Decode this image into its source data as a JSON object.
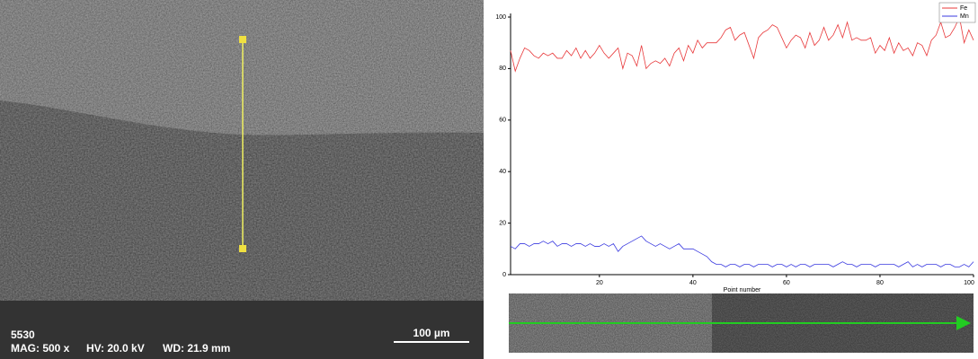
{
  "image_overlay": {
    "sample": "5530",
    "mag": "MAG: 500 x",
    "hv": "HV: 20.0 kV",
    "wd": "WD: 21.9 mm",
    "scale_bar": "100 µm"
  },
  "chart_data": {
    "type": "line",
    "x_label": "Point number",
    "x": [
      1,
      2,
      3,
      4,
      5,
      6,
      7,
      8,
      9,
      10,
      11,
      12,
      13,
      14,
      15,
      16,
      17,
      18,
      19,
      20,
      21,
      22,
      23,
      24,
      25,
      26,
      27,
      28,
      29,
      30,
      31,
      32,
      33,
      34,
      35,
      36,
      37,
      38,
      39,
      40,
      41,
      42,
      43,
      44,
      45,
      46,
      47,
      48,
      49,
      50,
      51,
      52,
      53,
      54,
      55,
      56,
      57,
      58,
      59,
      60,
      61,
      62,
      63,
      64,
      65,
      66,
      67,
      68,
      69,
      70,
      71,
      72,
      73,
      74,
      75,
      76,
      77,
      78,
      79,
      80,
      81,
      82,
      83,
      84,
      85,
      86,
      87,
      88,
      89,
      90,
      91,
      92,
      93,
      94,
      95,
      96,
      97,
      98,
      99,
      100
    ],
    "series": [
      {
        "name": "Fe",
        "color": "#e8383a",
        "values": [
          87,
          79,
          84,
          88,
          87,
          85,
          84,
          86,
          85,
          86,
          84,
          84,
          87,
          85,
          88,
          84,
          87,
          84,
          86,
          89,
          86,
          84,
          86,
          88,
          80,
          86,
          85,
          81,
          89,
          80,
          82,
          83,
          82,
          84,
          81,
          86,
          88,
          83,
          89,
          86,
          91,
          88,
          90,
          90,
          90,
          92,
          95,
          96,
          91,
          93,
          94,
          89,
          84,
          92,
          94,
          95,
          97,
          96,
          92,
          88,
          91,
          93,
          92,
          88,
          94,
          89,
          91,
          96,
          91,
          93,
          97,
          92,
          98,
          91,
          92,
          91,
          91,
          92,
          86,
          89,
          87,
          92,
          86,
          90,
          87,
          88,
          85,
          90,
          89,
          85,
          91,
          93,
          98,
          92,
          93,
          96,
          100,
          90,
          95,
          91
        ]
      },
      {
        "name": "Mn",
        "color": "#3a3ae0",
        "values": [
          11,
          10,
          12,
          12,
          11,
          12,
          12,
          13,
          12,
          13,
          11,
          12,
          12,
          11,
          12,
          12,
          11,
          12,
          11,
          11,
          12,
          11,
          12,
          9,
          11,
          12,
          13,
          14,
          15,
          13,
          12,
          11,
          12,
          11,
          10,
          11,
          12,
          10,
          10,
          10,
          9,
          8,
          7,
          5,
          4,
          4,
          3,
          4,
          4,
          3,
          4,
          4,
          3,
          4,
          4,
          4,
          3,
          4,
          4,
          3,
          4,
          3,
          4,
          4,
          3,
          4,
          4,
          4,
          4,
          3,
          4,
          5,
          4,
          4,
          3,
          4,
          4,
          4,
          3,
          4,
          4,
          4,
          4,
          3,
          4,
          5,
          3,
          4,
          3,
          4,
          4,
          4,
          3,
          4,
          4,
          3,
          3,
          4,
          3,
          5
        ]
      }
    ],
    "xlim": [
      1,
      100
    ],
    "xticks": [
      20,
      40,
      60,
      80,
      100
    ],
    "ylim": [
      0,
      100
    ],
    "yticks": [
      0,
      20,
      40,
      60,
      80,
      100
    ],
    "legend": "top-right"
  }
}
